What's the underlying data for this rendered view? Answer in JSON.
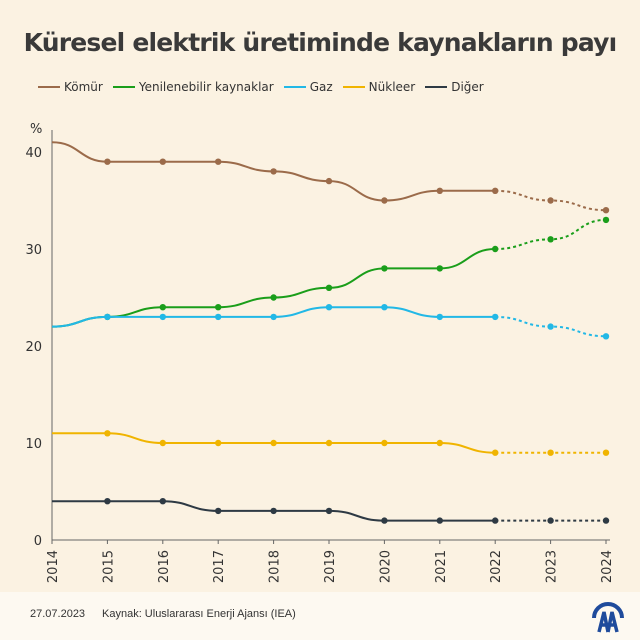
{
  "title": "Küresel elektrik üretiminde kaynakların payı",
  "footer": {
    "date": "27.07.2023",
    "source": "Kaynak: Uluslararası Enerji Ajansı (IEA)",
    "logo": "AA"
  },
  "chart_data": {
    "type": "line",
    "title": "Küresel elektrik üretiminde kaynakların payı",
    "ylabel": "%",
    "ylim": [
      0,
      40
    ],
    "yticks": [
      0,
      10,
      20,
      30,
      40
    ],
    "x": [
      "2014",
      "2015",
      "2016",
      "2017",
      "2018",
      "2019",
      "2020",
      "2021",
      "2022",
      "2023",
      "2024"
    ],
    "projection_from": "2022",
    "legend": "top",
    "series": [
      {
        "name": "Kömür",
        "color": "#9b6b4a",
        "values": [
          41,
          39,
          39,
          39,
          38,
          37,
          35,
          36,
          36,
          35,
          34
        ]
      },
      {
        "name": "Yenilenebilir kaynaklar",
        "color": "#1a9e1a",
        "values": [
          22,
          23,
          24,
          24,
          25,
          26,
          28,
          28,
          30,
          31,
          33
        ]
      },
      {
        "name": "Gaz",
        "color": "#22b8e6",
        "values": [
          22,
          23,
          23,
          23,
          23,
          24,
          24,
          23,
          23,
          22,
          21
        ]
      },
      {
        "name": "Nükleer",
        "color": "#f0b400",
        "values": [
          11,
          11,
          10,
          10,
          10,
          10,
          10,
          10,
          9,
          9,
          9
        ]
      },
      {
        "name": "Diğer",
        "color": "#2e3a44",
        "values": [
          4,
          4,
          4,
          3,
          3,
          3,
          2,
          2,
          2,
          2,
          2
        ]
      }
    ]
  }
}
